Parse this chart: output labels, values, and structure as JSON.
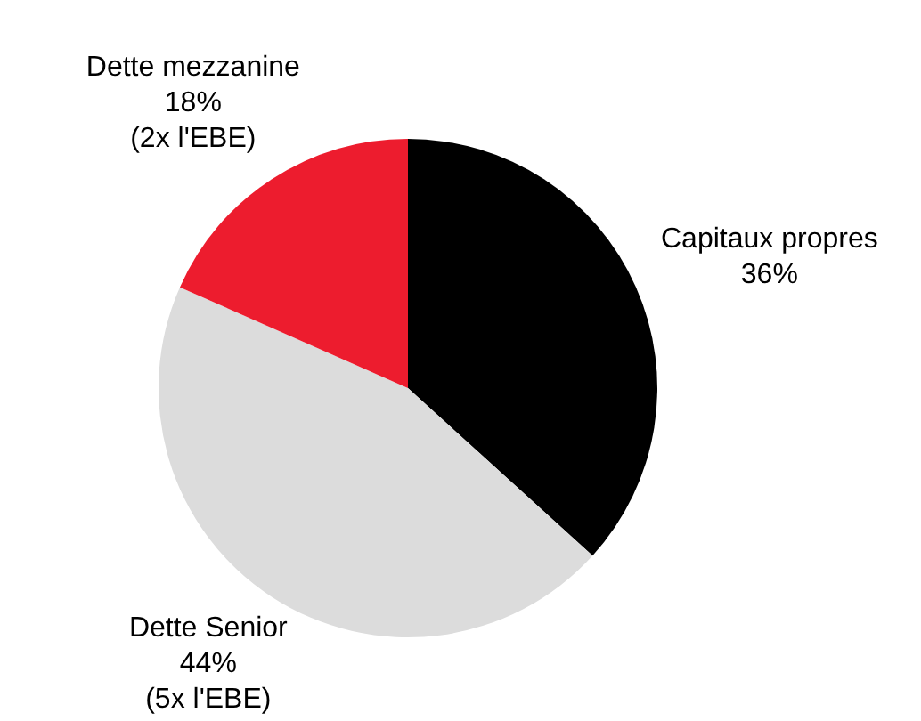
{
  "chart_data": {
    "type": "pie",
    "categories": [
      "Capitaux propres",
      "Dette Senior",
      "Dette mezzanine"
    ],
    "values": [
      36,
      44,
      18
    ],
    "colors": [
      "#000000",
      "#dcdcdc",
      "#ed1c2e"
    ],
    "value_labels": [
      "36%",
      "44%",
      "18%"
    ],
    "annotations": [
      {
        "text": "(5x l'EBE)",
        "x": "Dette Senior"
      },
      {
        "text": "(2x l'EBE)",
        "x": "Dette mezzanine"
      }
    ],
    "legend": false
  }
}
